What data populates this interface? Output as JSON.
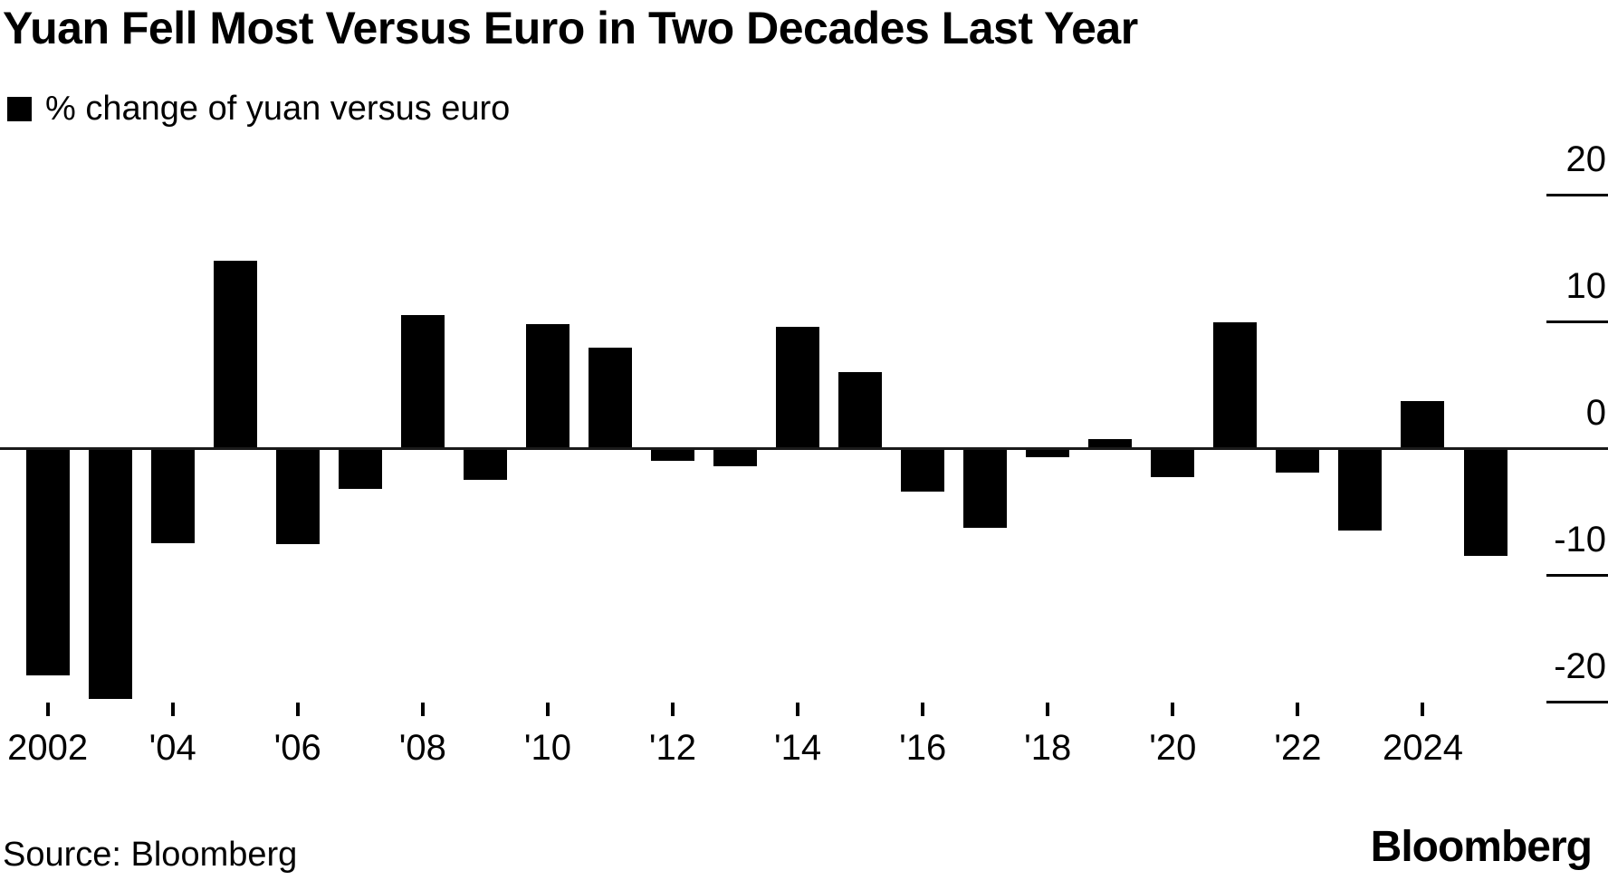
{
  "header": {
    "title": "Yuan Fell Most Versus Euro in Two Decades Last Year"
  },
  "legend": {
    "swatch_color": "#000000",
    "label": "% change of yuan versus euro"
  },
  "chart_data": {
    "type": "bar",
    "title": "Yuan Fell Most Versus Euro in Two Decades Last Year",
    "series_label": "% change of yuan versus euro",
    "bar_color": "#000000",
    "background_color": "#ffffff",
    "grid": "right-edge tick segments only, full-width zero axis line",
    "legend_position": "top-left",
    "ylim": [
      -24.6,
      21.4
    ],
    "x": [
      2002,
      2003,
      2004,
      2005,
      2006,
      2007,
      2008,
      2009,
      2010,
      2011,
      2012,
      2013,
      2014,
      2015,
      2016,
      2017,
      2018,
      2019,
      2020,
      2021,
      2022,
      2023,
      2024,
      2025
    ],
    "values": [
      -17.9,
      -19.8,
      -7.5,
      14.8,
      -7.6,
      -3.2,
      10.5,
      -2.5,
      9.8,
      7.9,
      -1.0,
      -1.4,
      9.6,
      6.0,
      -3.4,
      -6.3,
      -0.7,
      0.7,
      -2.3,
      9.9,
      -1.9,
      -6.5,
      3.7,
      -8.5
    ],
    "y_ticks": [
      {
        "value": 20,
        "label": "20"
      },
      {
        "value": 10,
        "label": "10"
      },
      {
        "value": 0,
        "label": "0"
      },
      {
        "value": -10,
        "label": "-10"
      },
      {
        "value": -20,
        "label": "-20"
      }
    ],
    "x_ticks": [
      {
        "year": 2002,
        "label": "2002"
      },
      {
        "year": 2004,
        "label": "'04"
      },
      {
        "year": 2006,
        "label": "'06"
      },
      {
        "year": 2008,
        "label": "'08"
      },
      {
        "year": 2010,
        "label": "'10"
      },
      {
        "year": 2012,
        "label": "'12"
      },
      {
        "year": 2014,
        "label": "'14"
      },
      {
        "year": 2016,
        "label": "'16"
      },
      {
        "year": 2018,
        "label": "'18"
      },
      {
        "year": 2020,
        "label": "'20"
      },
      {
        "year": 2022,
        "label": "'22"
      },
      {
        "year": 2024,
        "label": "2024"
      }
    ]
  },
  "footer": {
    "source": "Source: Bloomberg",
    "brand": "Bloomberg"
  }
}
